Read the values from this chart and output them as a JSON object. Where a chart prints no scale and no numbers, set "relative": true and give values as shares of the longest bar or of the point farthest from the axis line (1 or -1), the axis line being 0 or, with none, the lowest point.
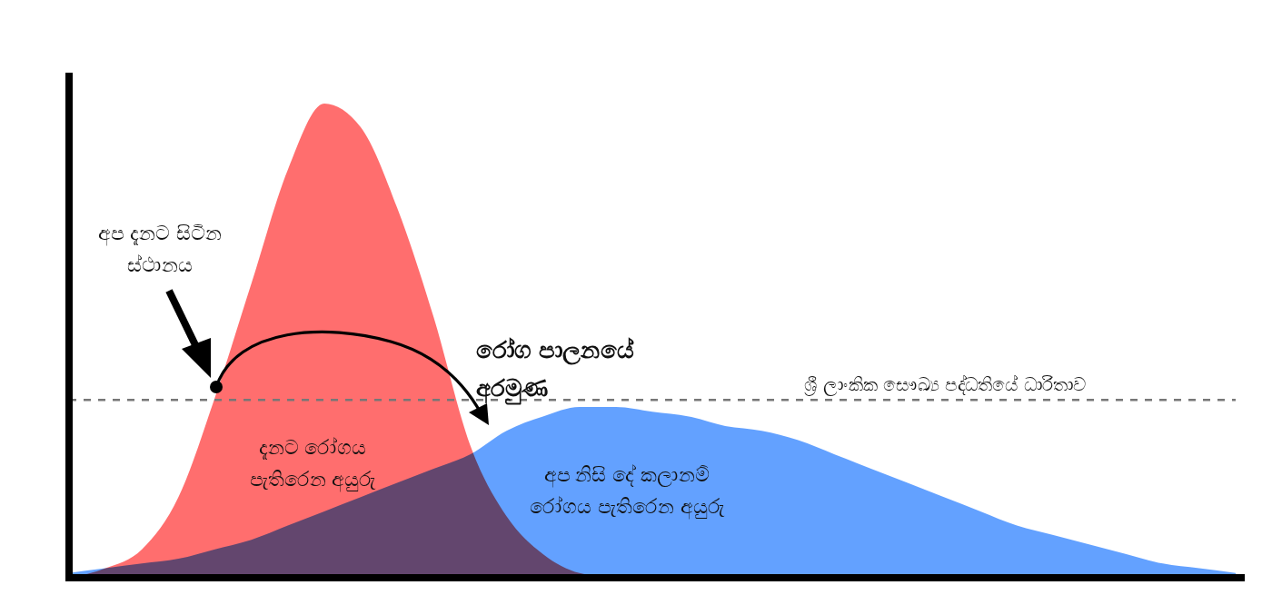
{
  "chart_data": {
    "type": "area",
    "relative": true,
    "categories": [
      null,
      null,
      null,
      null,
      null,
      null,
      null,
      null,
      null,
      null,
      null,
      null,
      null,
      null,
      null,
      null,
      null,
      null,
      null,
      null,
      null,
      null,
      null,
      null,
      null,
      null,
      null,
      null,
      null,
      null,
      null,
      null,
      null
    ],
    "series": [
      {
        "color": "#4d94ff",
        "values": [
          0.01,
          0.02,
          0.03,
          0.04,
          0.06,
          0.08,
          0.11,
          0.14,
          0.17,
          0.2,
          0.23,
          0.26,
          0.31,
          0.34,
          0.36,
          0.36,
          0.35,
          0.34,
          0.32,
          0.31,
          0.29,
          0.26,
          0.23,
          0.2,
          0.17,
          0.14,
          0.11,
          0.09,
          0.07,
          0.05,
          0.03,
          0.02,
          0.01
        ]
      },
      {
        "color": "#ff5a5a",
        "values": [
          0,
          0.02,
          0.06,
          0.17,
          0.38,
          0.62,
          0.86,
          1,
          0.95,
          0.78,
          0.55,
          0.28,
          0.13,
          0.05,
          0.01,
          0,
          0,
          0,
          0,
          0,
          0,
          0,
          0,
          0,
          0,
          0,
          0,
          0,
          0,
          0,
          0,
          0,
          0
        ]
      }
    ],
    "ref_lines": [
      {
        "axis": "y",
        "value": 0.375,
        "label": "ශ්‍රී ලාංකික සෞඛ්‍ය පද්ධතියේ ධාරිතාව",
        "line_style": "dashed",
        "color": "#777777"
      }
    ],
    "annotations": [
      "අප දැනට සිටින ස්ථානය",
      "රෝග පාලනයේ අරමුණ",
      "දැනට රෝගය පැතිරෙන අයුරු",
      "අප නිසි දේ කලානම් රෝගය පැතිරෙන අයුරු"
    ]
  }
}
